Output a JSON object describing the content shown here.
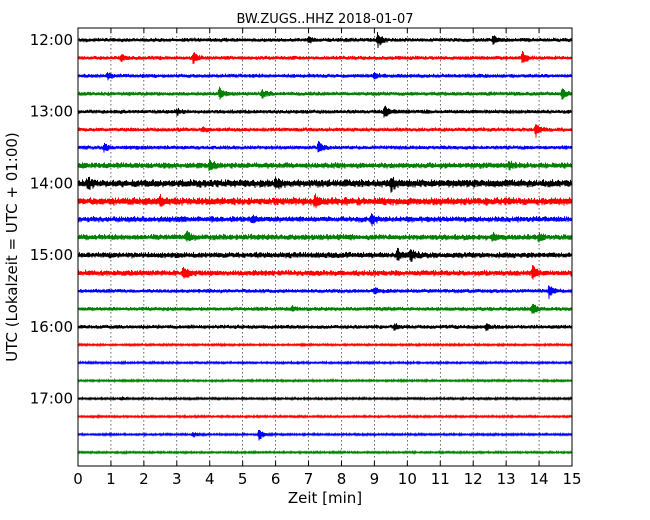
{
  "chart_data": {
    "type": "line",
    "title": "BW.ZUGS..HHZ 2018-01-07",
    "xlabel": "Zeit  [min]",
    "ylabel": "UTC (Lokalzeit = UTC + 01:00)",
    "xlim": [
      0,
      15
    ],
    "x_ticks": [
      "0",
      "1",
      "2",
      "3",
      "4",
      "5",
      "6",
      "7",
      "8",
      "9",
      "10",
      "11",
      "12",
      "13",
      "14",
      "15"
    ],
    "y_ticks": [
      "12:00",
      "13:00",
      "14:00",
      "15:00",
      "16:00",
      "17:00"
    ],
    "grid": "vertical dotted lines at each minute",
    "trace_interval_minutes": 15,
    "trace_colors": [
      "#000000",
      "#ff0000",
      "#0000ff",
      "#008000"
    ],
    "traces": [
      {
        "start": "12:00",
        "color": "#000000",
        "level": 2,
        "events": [
          {
            "x": 9.1,
            "amp": 7
          },
          {
            "x": 12.6,
            "amp": 5
          },
          {
            "x": 7.0,
            "amp": 3
          }
        ]
      },
      {
        "start": "12:15",
        "color": "#ff0000",
        "level": 2,
        "events": [
          {
            "x": 1.3,
            "amp": 3
          },
          {
            "x": 3.5,
            "amp": 6
          },
          {
            "x": 13.5,
            "amp": 6
          }
        ]
      },
      {
        "start": "12:30",
        "color": "#0000ff",
        "level": 2,
        "events": [
          {
            "x": 0.9,
            "amp": 4
          },
          {
            "x": 9.0,
            "amp": 3
          }
        ]
      },
      {
        "start": "12:45",
        "color": "#008000",
        "level": 2,
        "events": [
          {
            "x": 4.3,
            "amp": 6
          },
          {
            "x": 5.6,
            "amp": 4
          },
          {
            "x": 14.7,
            "amp": 5
          }
        ]
      },
      {
        "start": "13:00",
        "color": "#000000",
        "level": 2,
        "events": [
          {
            "x": 9.3,
            "amp": 8
          },
          {
            "x": 3.0,
            "amp": 3
          }
        ]
      },
      {
        "start": "13:15",
        "color": "#ff0000",
        "level": 2,
        "events": [
          {
            "x": 3.8,
            "amp": 3
          },
          {
            "x": 13.9,
            "amp": 7
          }
        ]
      },
      {
        "start": "13:30",
        "color": "#0000ff",
        "level": 2,
        "events": [
          {
            "x": 7.3,
            "amp": 6
          },
          {
            "x": 0.8,
            "amp": 4
          }
        ]
      },
      {
        "start": "13:45",
        "color": "#008000",
        "level": 3,
        "events": [
          {
            "x": 4.0,
            "amp": 5
          },
          {
            "x": 13.1,
            "amp": 3
          }
        ]
      },
      {
        "start": "14:00",
        "color": "#000000",
        "level": 4,
        "events": [
          {
            "x": 0.3,
            "amp": 5
          },
          {
            "x": 6.0,
            "amp": 5
          },
          {
            "x": 9.5,
            "amp": 6
          }
        ]
      },
      {
        "start": "14:15",
        "color": "#ff0000",
        "level": 4,
        "events": [
          {
            "x": 7.2,
            "amp": 6
          },
          {
            "x": 2.5,
            "amp": 4
          }
        ]
      },
      {
        "start": "14:30",
        "color": "#0000ff",
        "level": 3,
        "events": [
          {
            "x": 8.9,
            "amp": 5
          },
          {
            "x": 5.3,
            "amp": 3
          }
        ]
      },
      {
        "start": "14:45",
        "color": "#008000",
        "level": 3,
        "events": [
          {
            "x": 3.3,
            "amp": 5
          },
          {
            "x": 14.0,
            "amp": 4
          },
          {
            "x": 12.6,
            "amp": 4
          }
        ]
      },
      {
        "start": "15:00",
        "color": "#000000",
        "level": 3,
        "events": [
          {
            "x": 9.7,
            "amp": 5
          },
          {
            "x": 10.1,
            "amp": 6
          }
        ]
      },
      {
        "start": "15:15",
        "color": "#ff0000",
        "level": 3,
        "events": [
          {
            "x": 3.2,
            "amp": 6
          },
          {
            "x": 13.8,
            "amp": 6
          }
        ]
      },
      {
        "start": "15:30",
        "color": "#0000ff",
        "level": 2,
        "events": [
          {
            "x": 14.3,
            "amp": 7
          },
          {
            "x": 9.0,
            "amp": 4
          }
        ]
      },
      {
        "start": "15:45",
        "color": "#008000",
        "level": 2,
        "events": [
          {
            "x": 13.8,
            "amp": 6
          },
          {
            "x": 6.5,
            "amp": 3
          }
        ]
      },
      {
        "start": "16:00",
        "color": "#000000",
        "level": 2,
        "events": [
          {
            "x": 9.6,
            "amp": 3
          },
          {
            "x": 12.4,
            "amp": 3
          }
        ]
      },
      {
        "start": "16:15",
        "color": "#ff0000",
        "level": 1,
        "events": []
      },
      {
        "start": "16:30",
        "color": "#0000ff",
        "level": 1,
        "events": []
      },
      {
        "start": "16:45",
        "color": "#008000",
        "level": 1,
        "events": []
      },
      {
        "start": "17:00",
        "color": "#000000",
        "level": 1,
        "events": [
          {
            "x": 1.3,
            "amp": 2
          }
        ]
      },
      {
        "start": "17:15",
        "color": "#ff0000",
        "level": 1,
        "events": []
      },
      {
        "start": "17:30",
        "color": "#0000ff",
        "level": 1,
        "events": [
          {
            "x": 5.5,
            "amp": 6
          },
          {
            "x": 3.5,
            "amp": 3
          }
        ]
      },
      {
        "start": "17:45",
        "color": "#008000",
        "level": 1,
        "events": []
      }
    ]
  }
}
